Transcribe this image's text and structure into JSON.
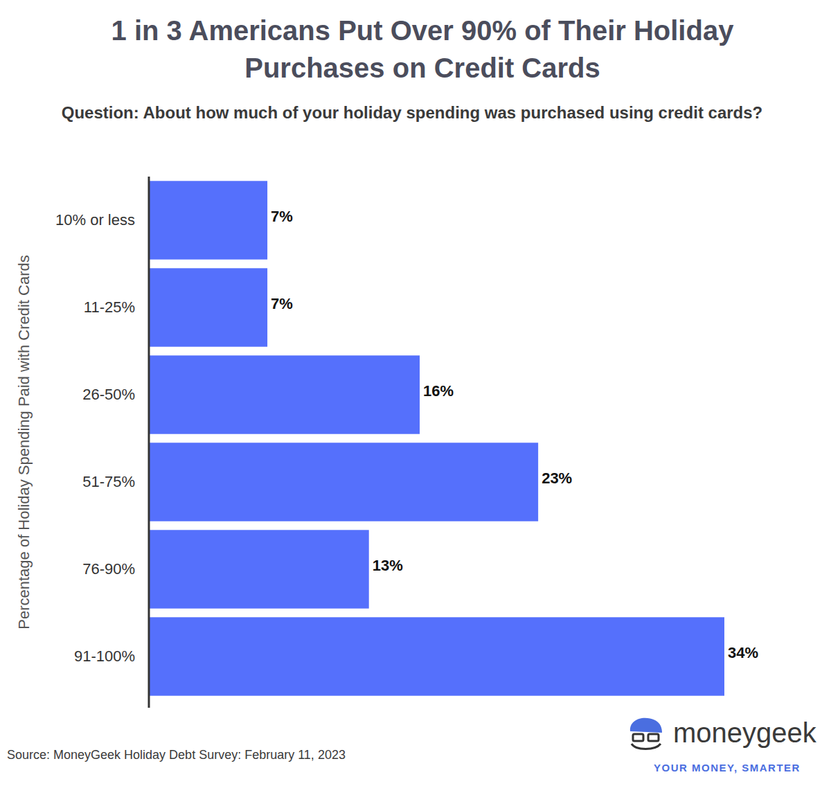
{
  "chart_data": {
    "type": "bar",
    "orientation": "horizontal",
    "title": "1 in 3 Americans Put Over 90% of Their Holiday Purchases on Credit Cards",
    "subtitle": "Question: About how much of your holiday spending was purchased using credit cards?",
    "ylabel": "Percentage of Holiday Spending Paid with Credit Cards",
    "categories": [
      "10% or less",
      "11-25%",
      "26-50%",
      "51-75%",
      "76-90%",
      "91-100%"
    ],
    "values": [
      7,
      7,
      16,
      23,
      13,
      34
    ],
    "value_labels": [
      "7%",
      "7%",
      "16%",
      "23%",
      "13%",
      "34%"
    ],
    "data_labels": true,
    "color": "#5570fc",
    "xlim": [
      0,
      34
    ],
    "tick_labels": "y",
    "source": "Source: MoneyGeek Holiday Debt Survey: February 11, 2023",
    "annotations": [
      "moneygeek",
      "YOUR MONEY, SMARTER"
    ]
  }
}
